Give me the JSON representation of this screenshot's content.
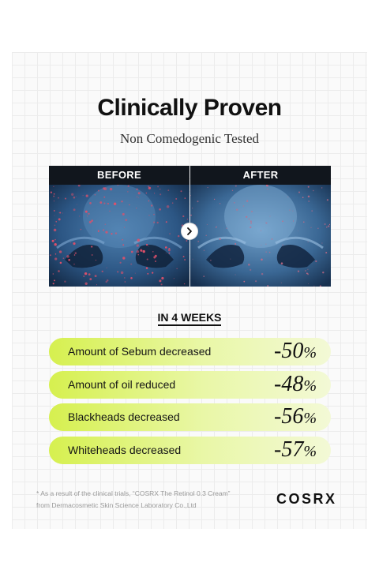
{
  "heading": {
    "title": "Clinically Proven",
    "subtitle": "Non Comedogenic Tested"
  },
  "comparison": {
    "before_label": "BEFORE",
    "after_label": "AFTER"
  },
  "results": {
    "period": "IN 4 WEEKS",
    "items": [
      {
        "label": "Amount of Sebum decreased",
        "value": "-50",
        "unit": "%"
      },
      {
        "label": "Amount of oil reduced",
        "value": "-48",
        "unit": "%"
      },
      {
        "label": "Blackheads decreased",
        "value": "-56",
        "unit": "%"
      },
      {
        "label": "Whiteheads decreased",
        "value": "-57",
        "unit": "%"
      }
    ]
  },
  "footnote": {
    "line1": "* As a result of the clinical trials, “COSRX The Retinol 0.3 Cream”",
    "line2": "from Dermacosmetic Skin Science Laboratory Co.,Ltd"
  },
  "brand": "COSRX",
  "colors": {
    "accent": "#d6f04f",
    "photo_bg": "#1f3b5e",
    "label_bg": "#11161d"
  }
}
